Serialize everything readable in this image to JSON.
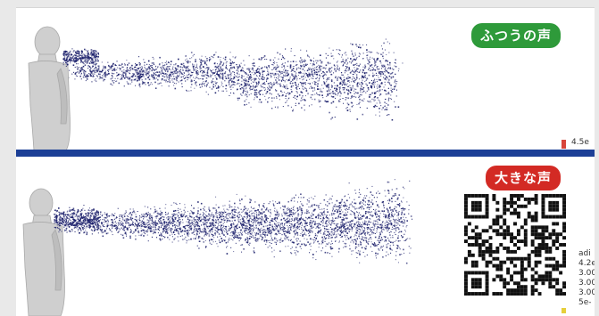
{
  "labels": {
    "normal_voice": "ふつうの声",
    "loud_voice": "大きな声"
  },
  "legend_top": "4.5e",
  "legend_bottom": [
    "adi",
    "4.2e",
    "3.00",
    "3.00",
    "3.00",
    "5e-"
  ],
  "colors": {
    "particle": "#1b1f6b",
    "divider": "#1c3f96",
    "label_green": "#2e9a3a",
    "label_red": "#d32a24",
    "legend_bar": "#d8453b"
  },
  "icons": [
    "qr-code-icon"
  ]
}
